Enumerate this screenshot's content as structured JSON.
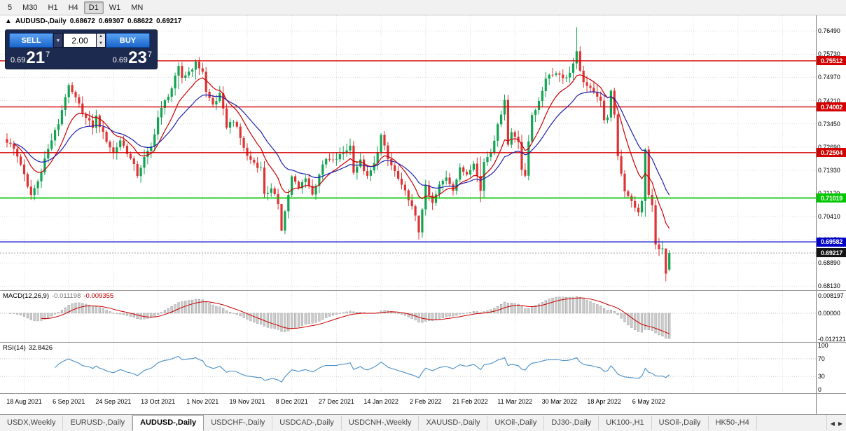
{
  "toolbar": {
    "timeframes": [
      {
        "label": "5",
        "active": false
      },
      {
        "label": "M30",
        "active": false
      },
      {
        "label": "H1",
        "active": false
      },
      {
        "label": "H4",
        "active": false
      },
      {
        "label": "D1",
        "active": true
      },
      {
        "label": "W1",
        "active": false
      },
      {
        "label": "MN",
        "active": false
      }
    ]
  },
  "icons": {
    "one_click_toggle": "▲",
    "volume_dropdown": "▼",
    "spin_up": "▲",
    "spin_down": "▼",
    "scroll_left": "◀",
    "scroll_right": "▶"
  },
  "chart_header": {
    "symbol_label": "AUDUSD-,Daily",
    "open": "0.68672",
    "high": "0.69307",
    "low": "0.68622",
    "close": "0.69217"
  },
  "trade_panel": {
    "sell_label": "SELL",
    "buy_label": "BUY",
    "volume": "2.00",
    "sell_price": {
      "small": "0.69",
      "big": "21",
      "sup": "7"
    },
    "buy_price": {
      "small": "0.69",
      "big": "23",
      "sup": "7"
    }
  },
  "macd_panel": {
    "name": "MACD(12,26,9)",
    "value_main": "-0.011198",
    "value_signal": "-0.009355"
  },
  "rsi_panel": {
    "name": "RSI(14)",
    "value": "32.8426"
  },
  "current_price_badge": {
    "label": "0.69217",
    "bg": "#141414"
  },
  "colors": {
    "bull": "#12a452",
    "bear": "#df3333",
    "ma_fast": "#cc0000",
    "ma_slow": "#1e22aa",
    "grid": "#dcdcdc",
    "macd_hist": "#cccccc",
    "macd_hist_border": "#8f8f8f",
    "macd_signal": "#cc0000",
    "rsi_line": "#4a8fc7"
  },
  "tabs": [
    {
      "label": "USDX,Weekly",
      "active": false
    },
    {
      "label": "EURUSD-,Daily",
      "active": false
    },
    {
      "label": "AUDUSD-,Daily",
      "active": true
    },
    {
      "label": "USDCHF-,Daily",
      "active": false
    },
    {
      "label": "USDCAD-,Daily",
      "active": false
    },
    {
      "label": "USDCNH-,Weekly",
      "active": false
    },
    {
      "label": "XAUUSD-,Daily",
      "active": false
    },
    {
      "label": "UKOil-,Daily",
      "active": false
    },
    {
      "label": "DJ30-,Daily",
      "active": false
    },
    {
      "label": "UK100-,H1",
      "active": false
    },
    {
      "label": "USOil-,Daily",
      "active": false
    },
    {
      "label": "HK50-,H4",
      "active": false
    }
  ],
  "chart_data": {
    "type": "candlestick",
    "symbol": "AUDUSD",
    "timeframe": "Daily",
    "current_ohlc": {
      "open": 0.68672,
      "high": 0.69307,
      "low": 0.68622,
      "close": 0.69217
    },
    "current_price": 0.69217,
    "y_max": 0.77,
    "y_min": 0.68,
    "y_ticks": [
      0.7649,
      0.7573,
      0.7497,
      0.7421,
      0.7345,
      0.7269,
      0.7193,
      0.7117,
      0.7041,
      0.6965,
      0.6889,
      0.6813
    ],
    "x_tick_labels": [
      "18 Aug 2021",
      "6 Sep 2021",
      "24 Sep 2021",
      "13 Oct 2021",
      "1 Nov 2021",
      "19 Nov 2021",
      "8 Dec 2021",
      "27 Dec 2021",
      "14 Jan 2022",
      "2 Feb 2022",
      "21 Feb 2022",
      "11 Mar 2022",
      "30 Mar 2022",
      "18 Apr 2022",
      "6 May 2022"
    ],
    "x_tick_start_index": 5,
    "x_tick_step": 13,
    "candle_count": 194,
    "levels": [
      {
        "price": 0.75512,
        "label": "0.75512",
        "color": "#d40000",
        "thickness": 1.3
      },
      {
        "price": 0.74002,
        "label": "0.74002",
        "color": "#d40000",
        "thickness": 1.3
      },
      {
        "price": 0.72504,
        "label": "0.72504",
        "color": "#d40000",
        "thickness": 1.3
      },
      {
        "price": 0.71019,
        "label": "0.71019",
        "color": "#00c800",
        "thickness": 1.8
      },
      {
        "price": 0.69582,
        "label": "0.69582",
        "color": "#0000c8",
        "thickness": 1.3
      }
    ],
    "ma_fast_period": 10,
    "ma_slow_period": 21,
    "macd": {
      "fast": 12,
      "slow": 26,
      "signal": 9,
      "scale_max": 0.0105,
      "scale_min": -0.0135,
      "axis_ticks": [
        0.008197,
        0,
        -0.012121
      ],
      "axis_labels": [
        "0.008197",
        "0.00000",
        "-0.012121"
      ]
    },
    "rsi": {
      "period": 14,
      "levels": [
        70,
        30
      ],
      "axis_ticks": [
        100,
        70,
        30,
        0
      ],
      "current": 32.8426
    },
    "price_path_anchors": [
      [
        0,
        0.7288
      ],
      [
        2,
        0.7262
      ],
      [
        4,
        0.7215
      ],
      [
        6,
        0.7135
      ],
      [
        7,
        0.7112
      ],
      [
        9,
        0.7156
      ],
      [
        11,
        0.723
      ],
      [
        13,
        0.7292
      ],
      [
        15,
        0.7346
      ],
      [
        17,
        0.7436
      ],
      [
        18,
        0.7464
      ],
      [
        19,
        0.7446
      ],
      [
        21,
        0.7406
      ],
      [
        23,
        0.7362
      ],
      [
        25,
        0.7336
      ],
      [
        26,
        0.7368
      ],
      [
        28,
        0.7312
      ],
      [
        30,
        0.727
      ],
      [
        31,
        0.7248
      ],
      [
        33,
        0.7292
      ],
      [
        35,
        0.7252
      ],
      [
        37,
        0.7206
      ],
      [
        38,
        0.7178
      ],
      [
        40,
        0.7232
      ],
      [
        42,
        0.7268
      ],
      [
        44,
        0.7366
      ],
      [
        46,
        0.7418
      ],
      [
        48,
        0.7462
      ],
      [
        50,
        0.7528
      ],
      [
        51,
        0.7496
      ],
      [
        53,
        0.7516
      ],
      [
        55,
        0.7542
      ],
      [
        57,
        0.7518
      ],
      [
        58,
        0.7448
      ],
      [
        60,
        0.7408
      ],
      [
        62,
        0.7438
      ],
      [
        64,
        0.7338
      ],
      [
        66,
        0.7358
      ],
      [
        68,
        0.7298
      ],
      [
        70,
        0.7238
      ],
      [
        72,
        0.7218
      ],
      [
        74,
        0.7198
      ],
      [
        75,
        0.7118
      ],
      [
        77,
        0.7128
      ],
      [
        79,
        0.7086
      ],
      [
        80,
        0.7002
      ],
      [
        81,
        0.7058
      ],
      [
        83,
        0.717
      ],
      [
        85,
        0.7132
      ],
      [
        87,
        0.7172
      ],
      [
        89,
        0.7112
      ],
      [
        91,
        0.7182
      ],
      [
        93,
        0.7228
      ],
      [
        95,
        0.7222
      ],
      [
        97,
        0.724
      ],
      [
        100,
        0.7272
      ],
      [
        101,
        0.7192
      ],
      [
        103,
        0.7222
      ],
      [
        105,
        0.7168
      ],
      [
        107,
        0.7212
      ],
      [
        109,
        0.7306
      ],
      [
        111,
        0.7228
      ],
      [
        113,
        0.7188
      ],
      [
        115,
        0.7138
      ],
      [
        117,
        0.7102
      ],
      [
        119,
        0.7038
      ],
      [
        120,
        0.6992
      ],
      [
        121,
        0.707
      ],
      [
        122,
        0.7136
      ],
      [
        124,
        0.7082
      ],
      [
        126,
        0.7142
      ],
      [
        128,
        0.7172
      ],
      [
        130,
        0.7132
      ],
      [
        132,
        0.7196
      ],
      [
        134,
        0.7182
      ],
      [
        136,
        0.7222
      ],
      [
        138,
        0.7125
      ],
      [
        139,
        0.7222
      ],
      [
        141,
        0.7256
      ],
      [
        143,
        0.7336
      ],
      [
        145,
        0.7428
      ],
      [
        146,
        0.7276
      ],
      [
        147,
        0.7318
      ],
      [
        149,
        0.7292
      ],
      [
        150,
        0.7196
      ],
      [
        151,
        0.7168
      ],
      [
        152,
        0.7288
      ],
      [
        153,
        0.7378
      ],
      [
        155,
        0.7412
      ],
      [
        157,
        0.7498
      ],
      [
        159,
        0.7512
      ],
      [
        161,
        0.7508
      ],
      [
        163,
        0.7492
      ],
      [
        165,
        0.7542
      ],
      [
        166,
        0.7576
      ],
      [
        167,
        0.7512
      ],
      [
        169,
        0.7462
      ],
      [
        171,
        0.7456
      ],
      [
        173,
        0.7422
      ],
      [
        174,
        0.7352
      ],
      [
        175,
        0.7372
      ],
      [
        176,
        0.7448
      ],
      [
        177,
        0.7368
      ],
      [
        178,
        0.7242
      ],
      [
        179,
        0.7182
      ],
      [
        180,
        0.7128
      ],
      [
        182,
        0.7096
      ],
      [
        183,
        0.7066
      ],
      [
        184,
        0.7052
      ],
      [
        185,
        0.7096
      ],
      [
        186,
        0.7256
      ],
      [
        187,
        0.7112
      ],
      [
        188,
        0.7076
      ],
      [
        189,
        0.6946
      ],
      [
        190,
        0.6942
      ],
      [
        191,
        0.6932
      ],
      [
        192,
        0.6852
      ],
      [
        193,
        0.69217
      ]
    ],
    "wick_overrides": {
      "18": [
        0.7478,
        0.7412
      ],
      "50": [
        0.7546,
        0.7458
      ],
      "55": [
        0.7557,
        0.749
      ],
      "80": [
        0.7056,
        0.6993
      ],
      "109": [
        0.7314,
        0.724
      ],
      "120": [
        0.7041,
        0.6966
      ],
      "138": [
        0.7238,
        0.7088
      ],
      "145": [
        0.7441,
        0.7356
      ],
      "166": [
        0.7661,
        0.7524
      ],
      "176": [
        0.7458,
        0.7352
      ],
      "186": [
        0.7266,
        0.704
      ],
      "192": [
        0.6916,
        0.6829
      ]
    }
  }
}
